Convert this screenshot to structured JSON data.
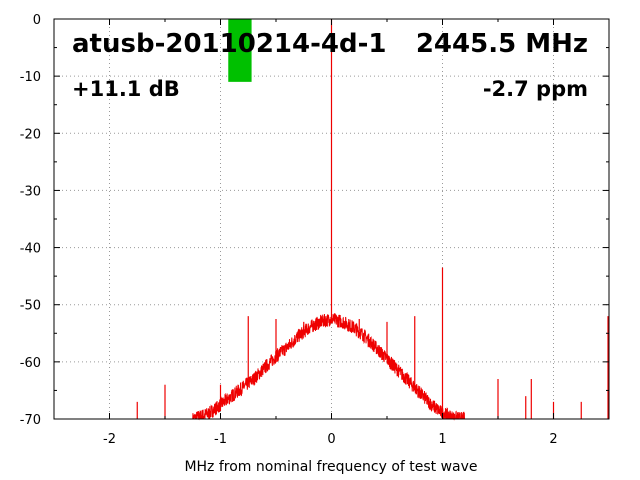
{
  "chart_data": {
    "type": "line",
    "title": "atusb-20110214-4d-1",
    "frequency_label": "2445.5 MHz",
    "gain_label": "+11.1 dB",
    "ppm_label": "-2.7 ppm",
    "xlabel": "MHz from nominal frequency of test wave",
    "ylabel": "",
    "xlim": [
      -2.5,
      2.5
    ],
    "ylim": [
      -70,
      0
    ],
    "x_ticks": [
      -2,
      -1,
      0,
      1,
      2
    ],
    "y_ticks": [
      0,
      -10,
      -20,
      -30,
      -40,
      -50,
      -60,
      -70
    ],
    "grid": true,
    "grid_style": "dotted",
    "series": [
      {
        "color": "#ee0000",
        "envelope": {
          "x": [
            -1.25,
            -1.1,
            -1.0,
            -0.9,
            -0.8,
            -0.7,
            -0.6,
            -0.5,
            -0.4,
            -0.3,
            -0.2,
            -0.1,
            0.0,
            0.1,
            0.2,
            0.3,
            0.4,
            0.5,
            0.6,
            0.7,
            0.8,
            0.9,
            1.0,
            1.1,
            1.2
          ],
          "y": [
            -70,
            -69,
            -67.5,
            -66,
            -64.5,
            -63,
            -61,
            -59,
            -57.5,
            -55.5,
            -54,
            -53,
            -52.5,
            -53,
            -54,
            -55.5,
            -57.5,
            -59.5,
            -61.5,
            -63.5,
            -65.5,
            -67.5,
            -69,
            -69.8,
            -70
          ]
        },
        "spikes": [
          {
            "x": 0.0,
            "y": 0
          },
          {
            "x": 1.0,
            "y": -43.5
          },
          {
            "x": -0.75,
            "y": -52
          },
          {
            "x": -0.5,
            "y": -52.5
          },
          {
            "x": -0.25,
            "y": -53
          },
          {
            "x": 0.25,
            "y": -52.5
          },
          {
            "x": 0.5,
            "y": -53
          },
          {
            "x": 0.75,
            "y": -52
          },
          {
            "x": -1.0,
            "y": -64
          },
          {
            "x": -1.5,
            "y": -64
          },
          {
            "x": -1.75,
            "y": -67
          },
          {
            "x": 1.5,
            "y": -63
          },
          {
            "x": 1.75,
            "y": -66
          },
          {
            "x": 1.8,
            "y": -63
          },
          {
            "x": 2.0,
            "y": -67
          },
          {
            "x": 2.25,
            "y": -67
          },
          {
            "x": 2.5,
            "y": -52
          }
        ]
      }
    ],
    "marker": {
      "x_from": -0.93,
      "x_to": -0.72,
      "y_from": -11,
      "y_to": 0,
      "color": "#00c000"
    }
  }
}
